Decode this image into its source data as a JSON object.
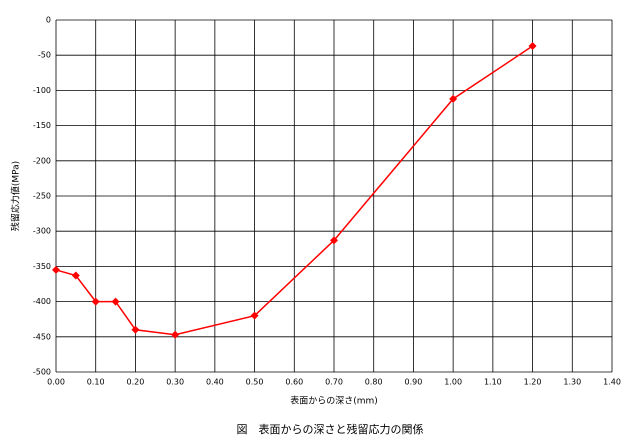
{
  "chart_data": {
    "type": "line",
    "title": "図　表面からの深さと残留応力の関係",
    "x_label": "表面からの深さ(mm)",
    "y_label": "残留応力値(MPa)",
    "x": [
      0,
      0.05,
      0.1,
      0.15,
      0.2,
      0.3,
      0.5,
      0.7,
      1.0,
      1.2
    ],
    "series": [
      {
        "name": "残留応力",
        "color": "#ff0000",
        "values": [
          -355,
          -363,
          -400,
          -400,
          -440,
          -447,
          -420,
          -313,
          -112,
          -37
        ]
      }
    ],
    "xlim": [
      0,
      1.4
    ],
    "xticks": [
      {
        "value": 0,
        "label": "0.00"
      },
      {
        "value": 0.1,
        "label": "0.10"
      },
      {
        "value": 0.2,
        "label": "0.20"
      },
      {
        "value": 0.3,
        "label": "0.30"
      },
      {
        "value": 0.4,
        "label": "0.40"
      },
      {
        "value": 0.5,
        "label": "0.50"
      },
      {
        "value": 0.6,
        "label": "0.60"
      },
      {
        "value": 0.7,
        "label": "0.70"
      },
      {
        "value": 0.8,
        "label": "0.80"
      },
      {
        "value": 0.9,
        "label": "0.90"
      },
      {
        "value": 1.0,
        "label": "1.00"
      },
      {
        "value": 1.1,
        "label": "1.10"
      },
      {
        "value": 1.2,
        "label": "1.20"
      },
      {
        "value": 1.3,
        "label": "1.30"
      },
      {
        "value": 1.4,
        "label": "1.40"
      }
    ],
    "ylim": [
      -500,
      0
    ],
    "yticks": [
      0,
      -50,
      -100,
      -150,
      -200,
      -250,
      -300,
      -350,
      -400,
      -450,
      -500
    ],
    "grid": true
  }
}
